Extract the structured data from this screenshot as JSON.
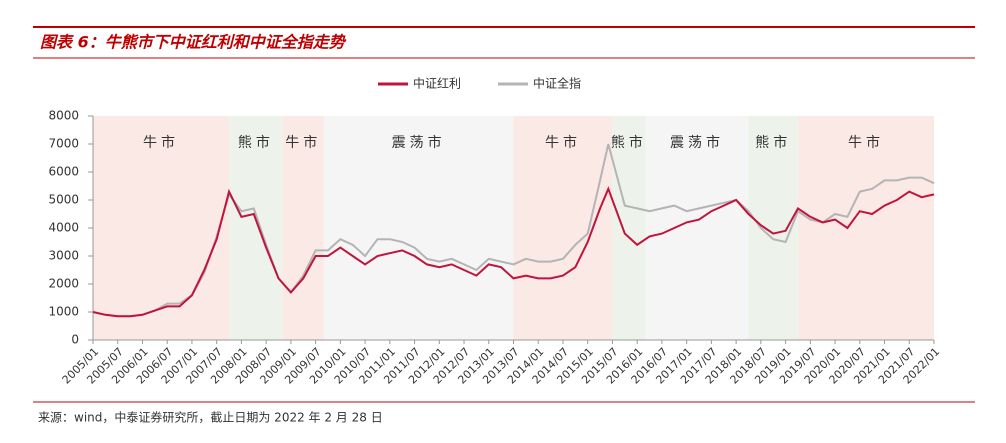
{
  "header": {
    "title": "图表 6：牛熊市下中证红利和中证全指走势"
  },
  "chart_data": {
    "type": "line",
    "x": [
      "2005/01",
      "2005/04",
      "2005/07",
      "2005/10",
      "2006/01",
      "2006/04",
      "2006/07",
      "2006/10",
      "2007/01",
      "2007/04",
      "2007/07",
      "2007/10",
      "2008/01",
      "2008/04",
      "2008/07",
      "2008/10",
      "2009/01",
      "2009/04",
      "2009/07",
      "2009/10",
      "2010/01",
      "2010/04",
      "2010/07",
      "2010/10",
      "2011/01",
      "2011/04",
      "2011/07",
      "2011/10",
      "2012/01",
      "2012/04",
      "2012/07",
      "2012/10",
      "2013/01",
      "2013/04",
      "2013/07",
      "2013/10",
      "2014/01",
      "2014/04",
      "2014/07",
      "2014/10",
      "2015/01",
      "2015/04",
      "2015/06",
      "2015/10",
      "2016/01",
      "2016/04",
      "2016/07",
      "2016/10",
      "2017/01",
      "2017/04",
      "2017/07",
      "2017/10",
      "2018/01",
      "2018/04",
      "2018/07",
      "2018/10",
      "2019/01",
      "2019/04",
      "2019/07",
      "2019/10",
      "2020/01",
      "2020/04",
      "2020/07",
      "2020/10",
      "2021/01",
      "2021/04",
      "2021/07",
      "2021/10",
      "2022/01"
    ],
    "series": [
      {
        "name": "中证红利",
        "color": "#c0143c",
        "values": [
          1000,
          900,
          850,
          850,
          900,
          1050,
          1200,
          1200,
          1600,
          2500,
          3600,
          5300,
          4400,
          4500,
          3300,
          2200,
          1700,
          2200,
          3000,
          3000,
          3300,
          3000,
          2700,
          3000,
          3100,
          3200,
          3000,
          2700,
          2600,
          2700,
          2500,
          2300,
          2700,
          2600,
          2200,
          2300,
          2200,
          2200,
          2300,
          2600,
          3500,
          4700,
          5400,
          3800,
          3400,
          3700,
          3800,
          4000,
          4200,
          4300,
          4600,
          4800,
          5000,
          4500,
          4100,
          3800,
          3900,
          4700,
          4400,
          4200,
          4300,
          4000,
          4600,
          4500,
          4800,
          5000,
          5300,
          5100,
          5200
        ]
      },
      {
        "name": "中证全指",
        "color": "#b4b4b4",
        "values": [
          1000,
          900,
          850,
          850,
          900,
          1050,
          1300,
          1300,
          1600,
          2400,
          3700,
          5200,
          4600,
          4700,
          3400,
          2200,
          1700,
          2300,
          3200,
          3200,
          3600,
          3400,
          3000,
          3600,
          3600,
          3500,
          3300,
          2900,
          2800,
          2900,
          2700,
          2500,
          2900,
          2800,
          2700,
          2900,
          2800,
          2800,
          2900,
          3400,
          3800,
          5700,
          7000,
          4800,
          4700,
          4600,
          4700,
          4800,
          4600,
          4700,
          4800,
          4900,
          5000,
          4600,
          4000,
          3600,
          3500,
          4600,
          4300,
          4200,
          4500,
          4400,
          5300,
          5400,
          5700,
          5700,
          5800,
          5800,
          5600
        ]
      }
    ],
    "ylim": [
      0,
      8000
    ],
    "yticks": [
      0,
      1000,
      2000,
      3000,
      4000,
      5000,
      6000,
      7000,
      8000
    ],
    "xticks": [
      "2005/01",
      "2005/07",
      "2006/01",
      "2006/07",
      "2007/01",
      "2007/07",
      "2008/01",
      "2008/07",
      "2009/01",
      "2009/07",
      "2010/01",
      "2010/07",
      "2011/01",
      "2011/07",
      "2012/01",
      "2012/07",
      "2013/01",
      "2013/07",
      "2014/01",
      "2014/07",
      "2015/01",
      "2015/07",
      "2016/01",
      "2016/07",
      "2017/01",
      "2017/07",
      "2018/01",
      "2018/07",
      "2019/01",
      "2019/07",
      "2020/01",
      "2020/07",
      "2021/01",
      "2021/07",
      "2022/01"
    ],
    "regions": [
      {
        "label": "牛市",
        "start": "2005/01",
        "end": "2007/10",
        "color": "#fbe9e5"
      },
      {
        "label": "熊市",
        "start": "2007/10",
        "end": "2008/11",
        "color": "#edf3eb"
      },
      {
        "label": "牛市",
        "start": "2008/11",
        "end": "2009/09",
        "color": "#fbe9e5"
      },
      {
        "label": "震荡市",
        "start": "2009/09",
        "end": "2013/07",
        "color": "#f5f5f5"
      },
      {
        "label": "牛市",
        "start": "2013/07",
        "end": "2015/07",
        "color": "#fbe9e5"
      },
      {
        "label": "熊市",
        "start": "2015/07",
        "end": "2016/03",
        "color": "#edf3eb"
      },
      {
        "label": "震荡市",
        "start": "2016/03",
        "end": "2018/04",
        "color": "#f5f5f5"
      },
      {
        "label": "熊市",
        "start": "2018/04",
        "end": "2019/04",
        "color": "#edf3eb"
      },
      {
        "label": "牛市",
        "start": "2019/04",
        "end": "2022/01",
        "color": "#fbe9e5"
      }
    ]
  },
  "footer": {
    "source": "来源：wind，中泰证券研究所，截止日期为 2022 年 2 月 28 日"
  }
}
